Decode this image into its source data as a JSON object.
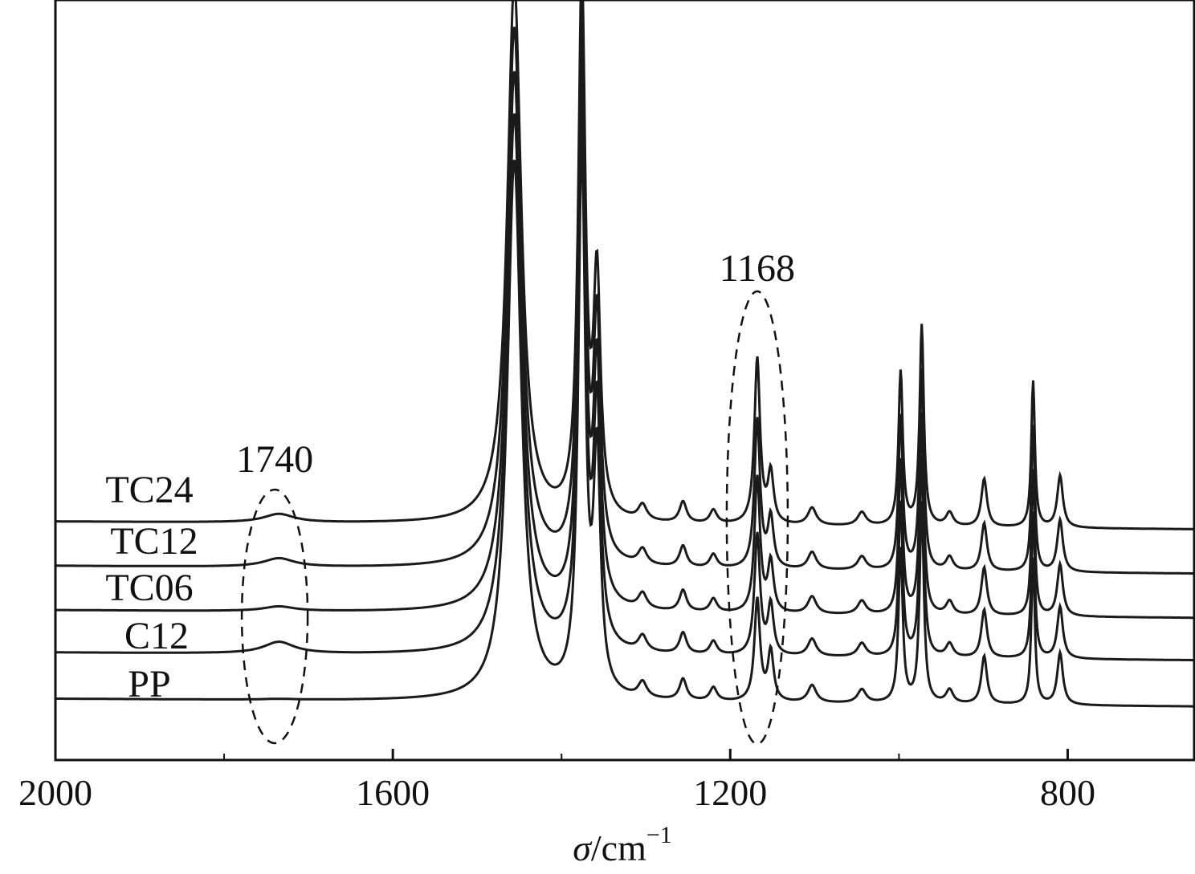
{
  "chart_data": {
    "type": "line",
    "xlabel": {
      "symbol": "σ",
      "unit": "/cm",
      "exponent": "−1"
    },
    "ylabel": "",
    "xlim": [
      2000,
      650
    ],
    "x_reversed": true,
    "x_ticks": [
      2000,
      1600,
      1200,
      800
    ],
    "x_tick_labels": [
      "2000",
      "1600",
      "1200",
      "800"
    ],
    "grid": false,
    "legend": "labels at left of each trace",
    "series_order_top_to_bottom": [
      "TC24",
      "TC12",
      "TC06",
      "C12",
      "PP"
    ],
    "series": [
      {
        "name": "TC24",
        "baseline": 5.25,
        "baseline_slope": -0.2,
        "carbonyl_1740": 0.22,
        "ester_1168": 1.0
      },
      {
        "name": "TC12",
        "baseline": 4.1,
        "baseline_slope": -0.2,
        "carbonyl_1740": 0.22,
        "ester_1168": 0.78
      },
      {
        "name": "TC06",
        "baseline": 2.95,
        "baseline_slope": -0.2,
        "carbonyl_1740": 0.12,
        "ester_1168": 0.6
      },
      {
        "name": "C12",
        "baseline": 1.85,
        "baseline_slope": -0.2,
        "carbonyl_1740": 0.3,
        "ester_1168": 0.4
      },
      {
        "name": "PP",
        "baseline": 0.65,
        "baseline_slope": -0.2,
        "carbonyl_1740": 0.02,
        "ester_1168": 0.15
      }
    ],
    "common_peaks": [
      {
        "x": 1456,
        "height": 14,
        "width": 10
      },
      {
        "x": 1376,
        "height": 14,
        "width": 5
      },
      {
        "x": 1358,
        "height": 6,
        "width": 5
      },
      {
        "x": 1304,
        "height": 0.4,
        "width": 6
      },
      {
        "x": 1256,
        "height": 0.55,
        "width": 5
      },
      {
        "x": 1220,
        "height": 0.35,
        "width": 5
      },
      {
        "x": 1168,
        "height": 4.3,
        "width": 4
      },
      {
        "x": 1152,
        "height": 1.3,
        "width": 4
      },
      {
        "x": 1103,
        "height": 0.45,
        "width": 6
      },
      {
        "x": 1044,
        "height": 0.35,
        "width": 6
      },
      {
        "x": 998,
        "height": 4.0,
        "width": 3
      },
      {
        "x": 973,
        "height": 5.2,
        "width": 3
      },
      {
        "x": 940,
        "height": 0.35,
        "width": 5
      },
      {
        "x": 899,
        "height": 1.25,
        "width": 4
      },
      {
        "x": 841,
        "height": 3.8,
        "width": 2.5
      },
      {
        "x": 809,
        "height": 1.35,
        "width": 4
      }
    ],
    "annotations": [
      {
        "text": "1740",
        "x": 1740
      },
      {
        "text": "1168",
        "x": 1168
      }
    ],
    "colors": {
      "line": "#1a1a1a",
      "axis": "#111111",
      "background": "#ffffff"
    }
  }
}
